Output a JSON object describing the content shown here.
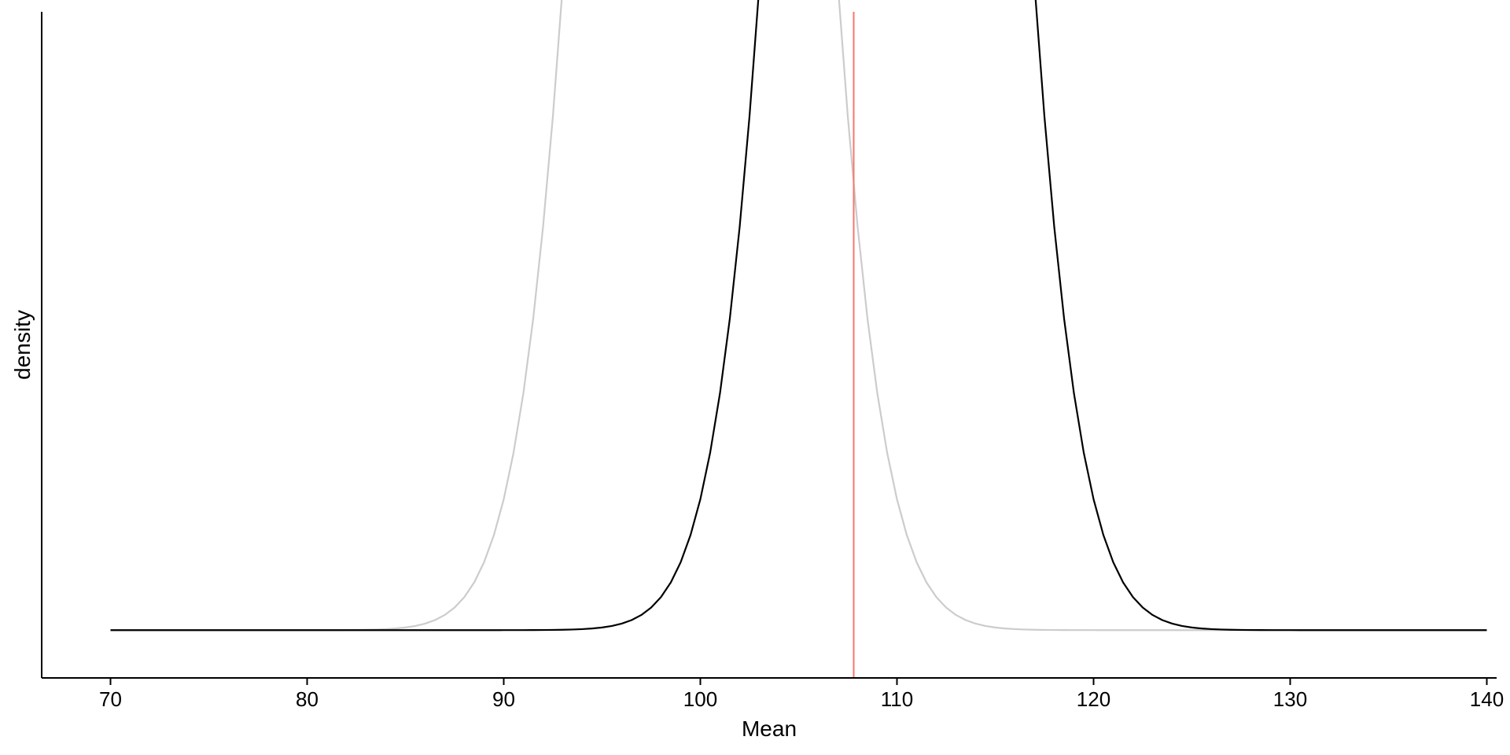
{
  "chart_data": {
    "type": "line",
    "xlabel": "Mean",
    "ylabel": "density",
    "xlim": [
      66.5,
      140.5
    ],
    "ylim": [
      -0.0016,
      0.0207
    ],
    "x_ticks": [
      70,
      80,
      90,
      100,
      110,
      120,
      130,
      140
    ],
    "x_tick_labels": [
      "70",
      "80",
      "90",
      "100",
      "110",
      "120",
      "130",
      "140"
    ],
    "y_ticks_shown": false,
    "grid": false,
    "legend": "none",
    "curve_x_range": [
      70,
      140
    ],
    "series": [
      {
        "color": "#cccccc",
        "distribution": "normal",
        "mean": 100,
        "sd": 4
      },
      {
        "color": "#000000",
        "distribution": "normal",
        "mean": 110,
        "sd": 4
      }
    ],
    "reference_line": {
      "x": 107.8,
      "color": "#f8766d"
    }
  }
}
